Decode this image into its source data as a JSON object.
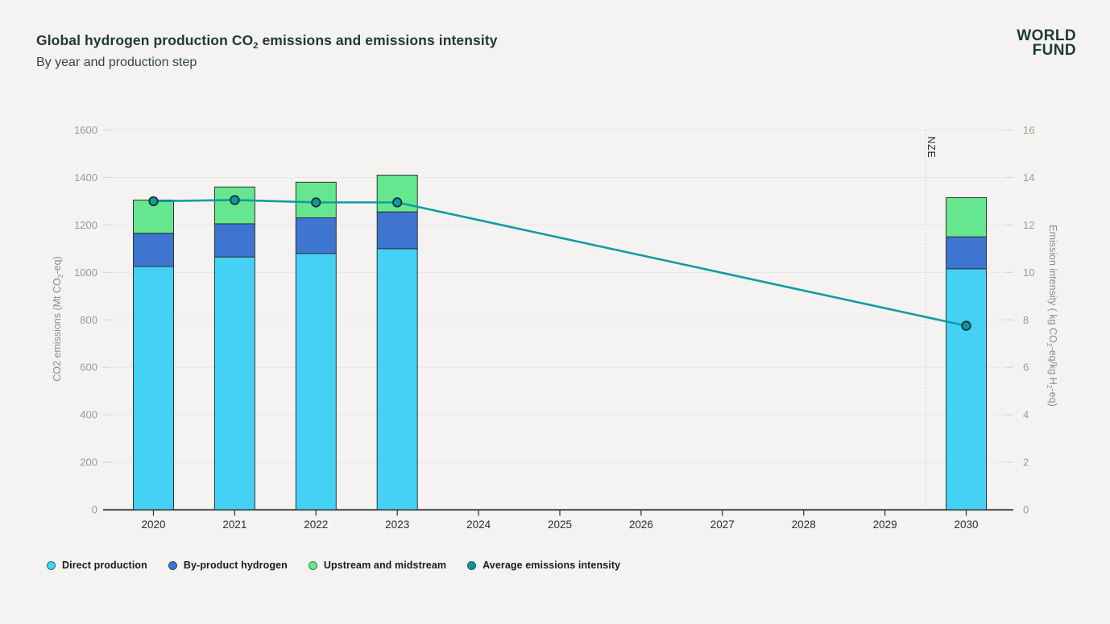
{
  "header": {
    "title_parts": [
      "Global hydrogen production CO",
      "2",
      " emissions and emissions intensity"
    ],
    "subtitle": "By year and production step",
    "logo_line1": "WORLD",
    "logo_line2": "FUND"
  },
  "chart_data": {
    "type": "stacked-bar+line",
    "stacked": true,
    "title": "Global hydrogen production CO2 emissions and emissions intensity",
    "subtitle": "By year and production step",
    "categories": [
      2020,
      2021,
      2022,
      2023,
      2030
    ],
    "x_axis": {
      "ticks": [
        2020,
        2021,
        2022,
        2023,
        2024,
        2025,
        2026,
        2027,
        2028,
        2029,
        2030
      ]
    },
    "bar_series": [
      {
        "name": "Direct production",
        "color": "#45d0f5",
        "values": [
          1025,
          1065,
          1080,
          1100,
          1015
        ]
      },
      {
        "name": "By-product hydrogen",
        "color": "#3d75d0",
        "values": [
          140,
          140,
          150,
          155,
          135
        ]
      },
      {
        "name": "Upstream and midstream",
        "color": "#66e78f",
        "values": [
          140,
          155,
          150,
          155,
          165
        ]
      }
    ],
    "bar_totals": [
      1305,
      1360,
      1380,
      1410,
      1315
    ],
    "line_series": {
      "name": "Average emissions intensity",
      "axis": "right",
      "color": "#0e9da4",
      "marker_fill": "#0b99a1",
      "marker_stroke": "#1e332f",
      "values": [
        13.0,
        13.05,
        12.95,
        12.95,
        7.75
      ]
    },
    "left_axis": {
      "label": "CO2 emissions (Mt CO₂-eq)",
      "label_parts": [
        "CO2 emissions (Mt CO",
        "2",
        "-eq)"
      ],
      "min": 0,
      "max": 1600,
      "step": 200
    },
    "right_axis": {
      "label": "Emission intensity ( kg CO₂-eq/kg H₂-eq)",
      "label_parts": [
        "Emission intensity ( kg CO",
        "2",
        "-eq/kg H",
        "2",
        "-eq)"
      ],
      "min": 0,
      "max": 16,
      "step": 2
    },
    "annotation": {
      "label": "NZE",
      "year_position": 2029.5
    },
    "grid": "horizontal-only",
    "legend_position": "bottom-left",
    "colors": {
      "background": "#f4f3f1",
      "gridline": "#e9e7e4",
      "grid_end_tick": "#d2d0cd",
      "axis_line": "#3a3a38",
      "bar_border": "#2f3633",
      "y_tick_label": "#9b9a97",
      "x_tick_label": "#2d2d2b",
      "annotation_line": "#c9c7c4"
    }
  },
  "legend": {
    "items": [
      {
        "label": "Direct production",
        "color": "#45d0f5"
      },
      {
        "label": "By-product hydrogen",
        "color": "#3d75d0"
      },
      {
        "label": "Upstream and midstream",
        "color": "#66e78f"
      },
      {
        "label": "Average emissions intensity",
        "color": "#12949d"
      }
    ]
  }
}
